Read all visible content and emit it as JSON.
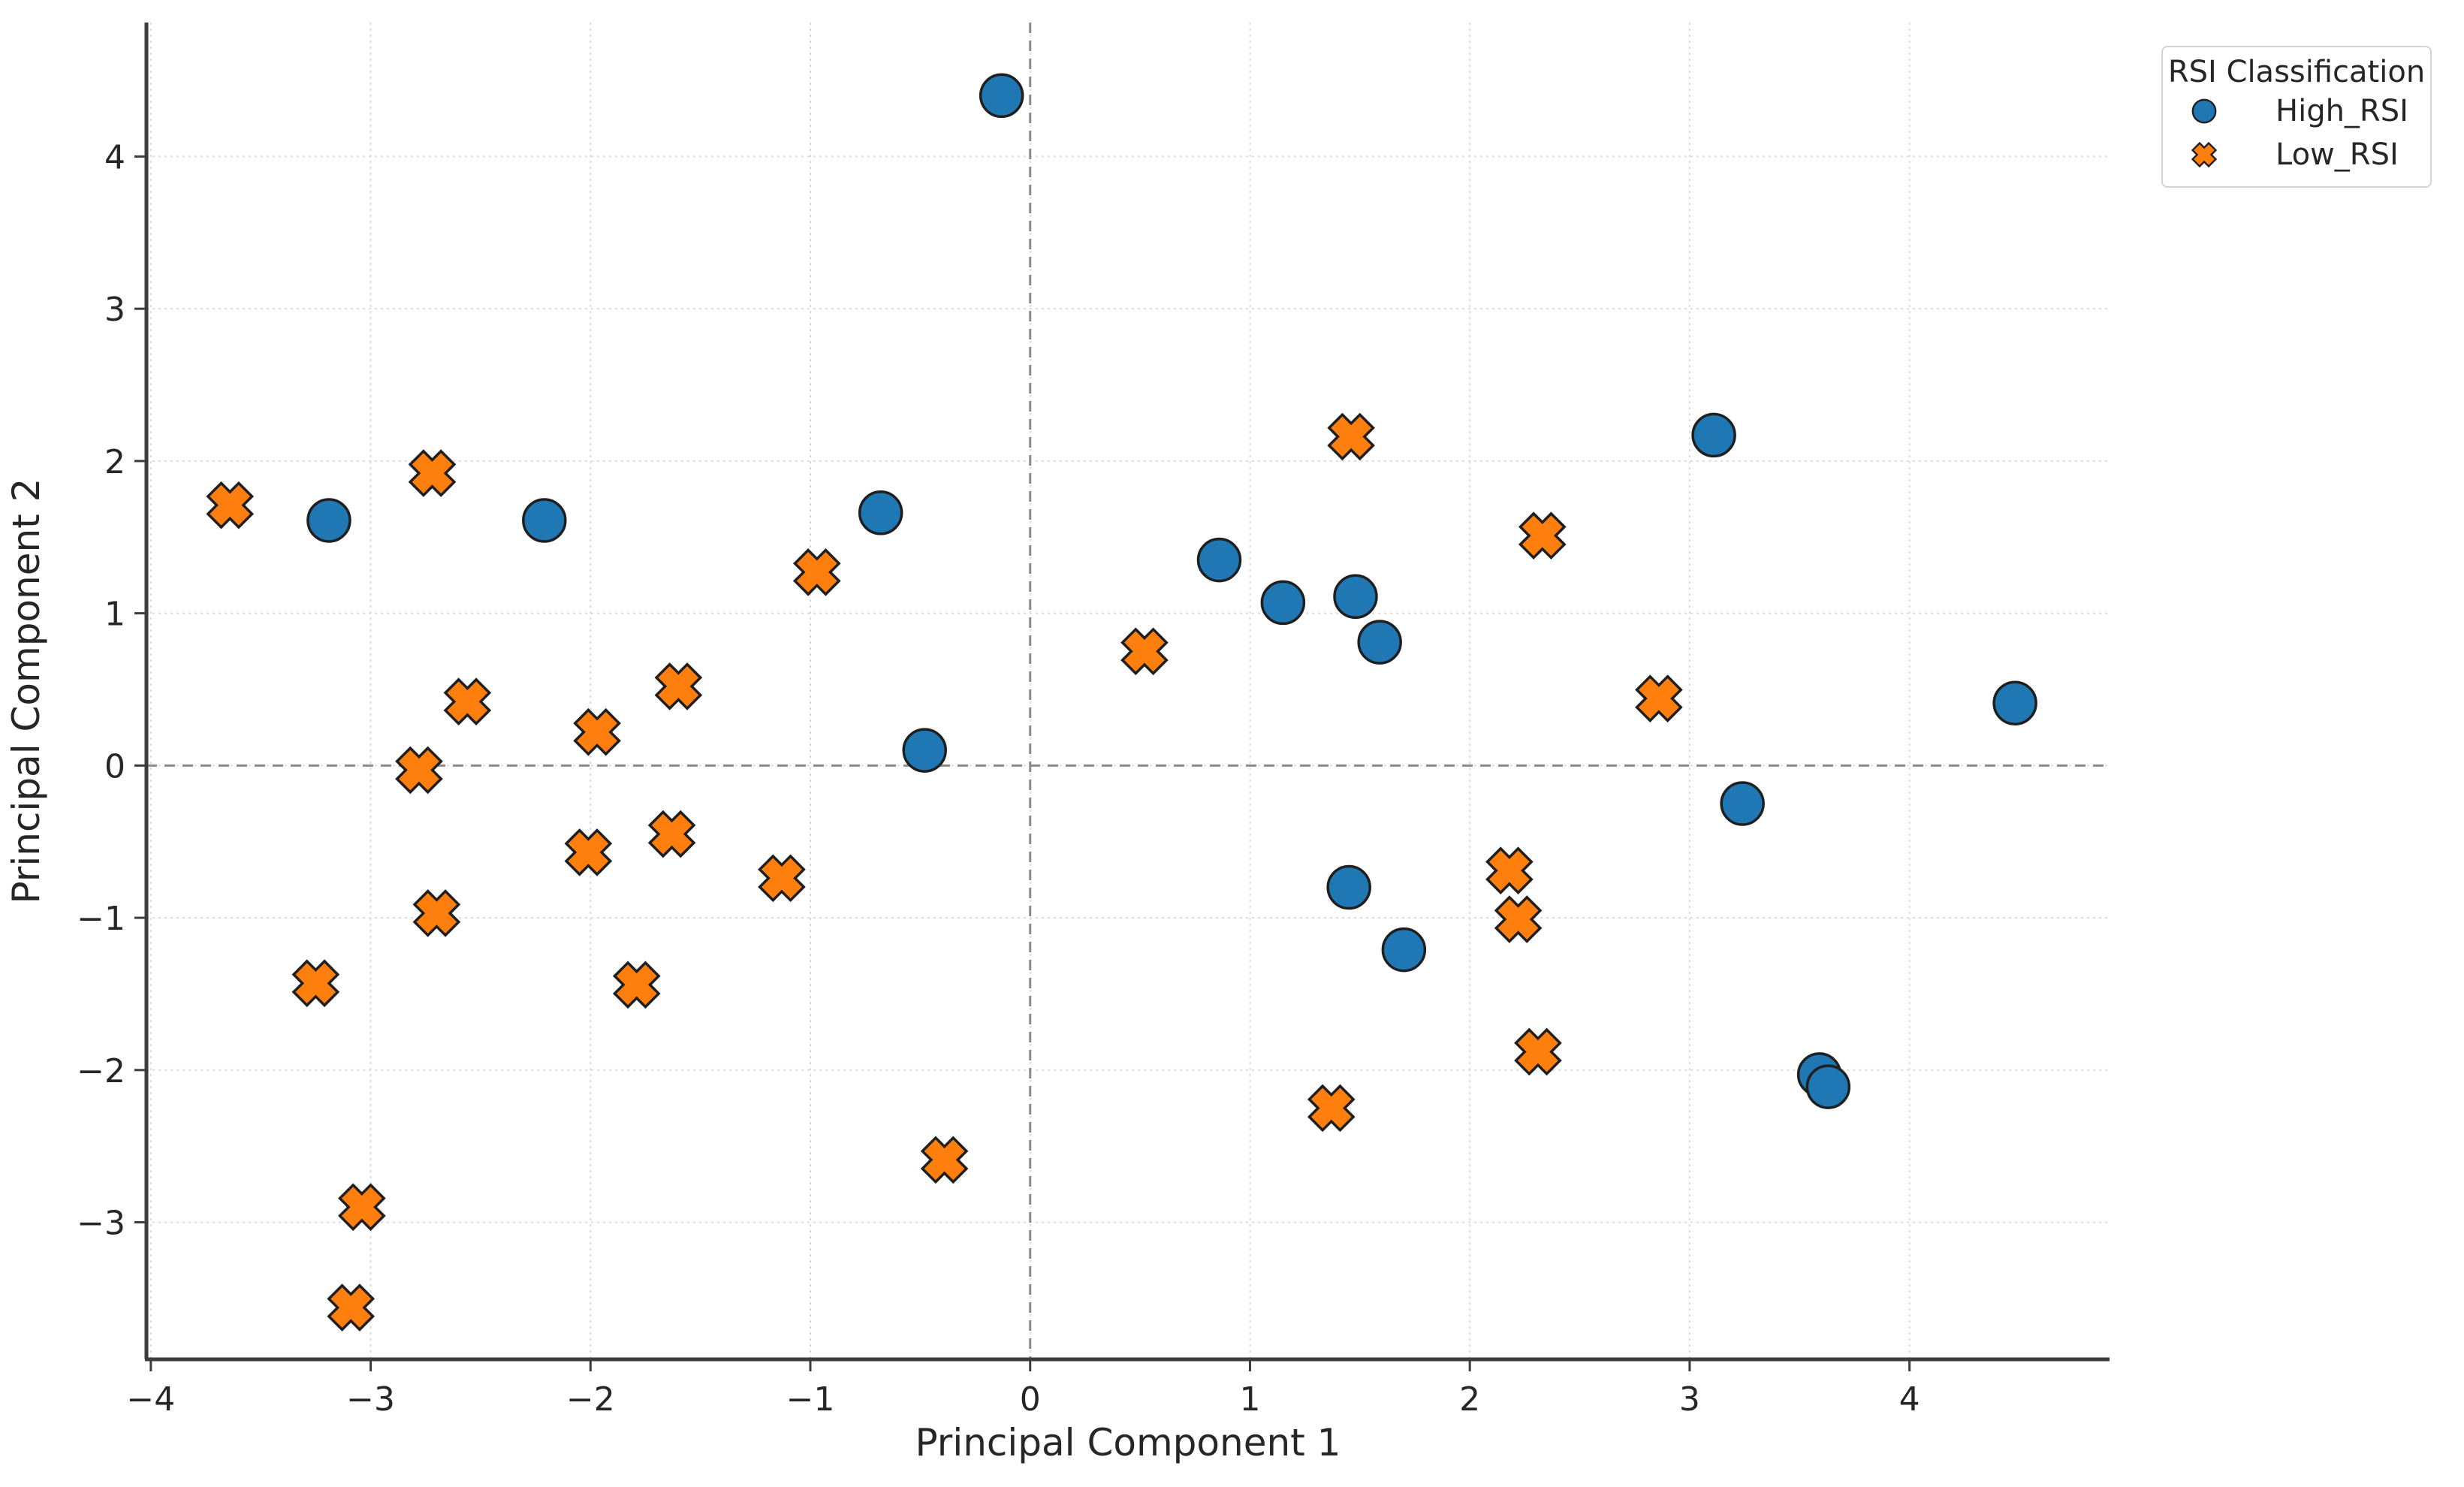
{
  "figure": {
    "background": "#ffffff"
  },
  "chart_data": {
    "type": "scatter",
    "title": "",
    "xlabel": "Principal Component 1",
    "ylabel": "Principal Component 2",
    "xlim": [
      -4.02,
      4.91
    ],
    "ylim": [
      -3.9,
      4.88
    ],
    "xticks": [
      -4,
      -3,
      -2,
      -1,
      0,
      1,
      2,
      3,
      4
    ],
    "yticks": [
      -3,
      -2,
      -1,
      0,
      1,
      2,
      3,
      4
    ],
    "grid": true,
    "zero_lines": true,
    "colors": {
      "high_rsi": "#1f77b4",
      "low_rsi": "#ff7f0e",
      "marker_edge": "#1f1f1f",
      "grid": "#dcdcdc",
      "zero_line": "#8a8a8a",
      "spine": "#3c3c3c",
      "text": "#262626"
    },
    "legend": {
      "title": "RSI Classification",
      "position": "upper-right-outside",
      "entries": [
        {
          "label": "High_RSI",
          "marker": "circle",
          "color": "#1f77b4"
        },
        {
          "label": "Low_RSI",
          "marker": "X",
          "color": "#ff7f0e"
        }
      ]
    },
    "series": [
      {
        "name": "High_RSI",
        "marker": "circle",
        "color": "#1f77b4",
        "points": [
          [
            -3.19,
            1.61
          ],
          [
            -2.21,
            1.61
          ],
          [
            -0.68,
            1.66
          ],
          [
            -0.13,
            4.4
          ],
          [
            -0.48,
            0.1
          ],
          [
            0.86,
            1.35
          ],
          [
            1.15,
            1.07
          ],
          [
            1.48,
            1.11
          ],
          [
            1.59,
            0.81
          ],
          [
            1.45,
            -0.8
          ],
          [
            1.7,
            -1.21
          ],
          [
            3.11,
            2.17
          ],
          [
            3.24,
            -0.25
          ],
          [
            3.59,
            -2.03
          ],
          [
            3.63,
            -2.11
          ],
          [
            4.48,
            0.41
          ]
        ]
      },
      {
        "name": "Low_RSI",
        "marker": "X",
        "color": "#ff7f0e",
        "points": [
          [
            -3.64,
            1.71
          ],
          [
            -2.72,
            1.92
          ],
          [
            -2.78,
            -0.03
          ],
          [
            -2.56,
            0.42
          ],
          [
            -1.97,
            0.22
          ],
          [
            -1.6,
            0.52
          ],
          [
            -0.97,
            1.27
          ],
          [
            -3.25,
            -1.43
          ],
          [
            -2.7,
            -0.97
          ],
          [
            -2.01,
            -0.57
          ],
          [
            -1.63,
            -0.45
          ],
          [
            -1.79,
            -1.44
          ],
          [
            -1.13,
            -0.74
          ],
          [
            -3.04,
            -2.9
          ],
          [
            -3.09,
            -3.56
          ],
          [
            -0.39,
            -2.59
          ],
          [
            0.52,
            0.75
          ],
          [
            1.46,
            2.16
          ],
          [
            2.33,
            1.51
          ],
          [
            2.86,
            0.44
          ],
          [
            2.18,
            -0.69
          ],
          [
            2.22,
            -1.01
          ],
          [
            2.31,
            -1.88
          ],
          [
            1.37,
            -2.25
          ]
        ]
      }
    ]
  }
}
